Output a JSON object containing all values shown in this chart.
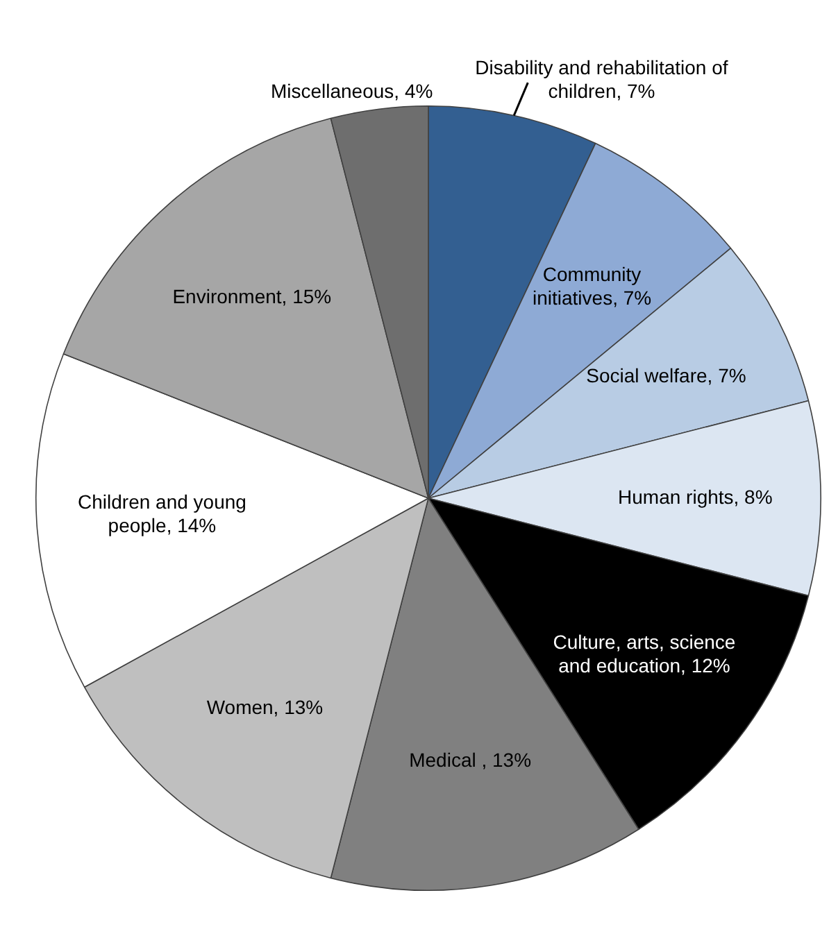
{
  "chart_data": {
    "type": "pie",
    "categories": [
      "Disability and rehabilitation of children",
      "Community initiatives",
      "Social welfare",
      "Human rights",
      "Culture, arts, science and education",
      "Medical ",
      "Women",
      "Children and young people",
      "Environment",
      "Miscellaneous"
    ],
    "values": [
      7,
      7,
      7,
      8,
      12,
      13,
      13,
      14,
      15,
      4
    ],
    "colors": [
      "#335f91",
      "#8eaad5",
      "#b8cce4",
      "#dce6f2",
      "#000000",
      "#808080",
      "#bfbfbf",
      "#ffffff",
      "#a6a6a6",
      "#6e6e6e"
    ],
    "value_labels": [
      "7%",
      "7%",
      "7%",
      "8%",
      "12%",
      "13%",
      "13%",
      "14%",
      "15%",
      "4%"
    ],
    "legend": false
  }
}
